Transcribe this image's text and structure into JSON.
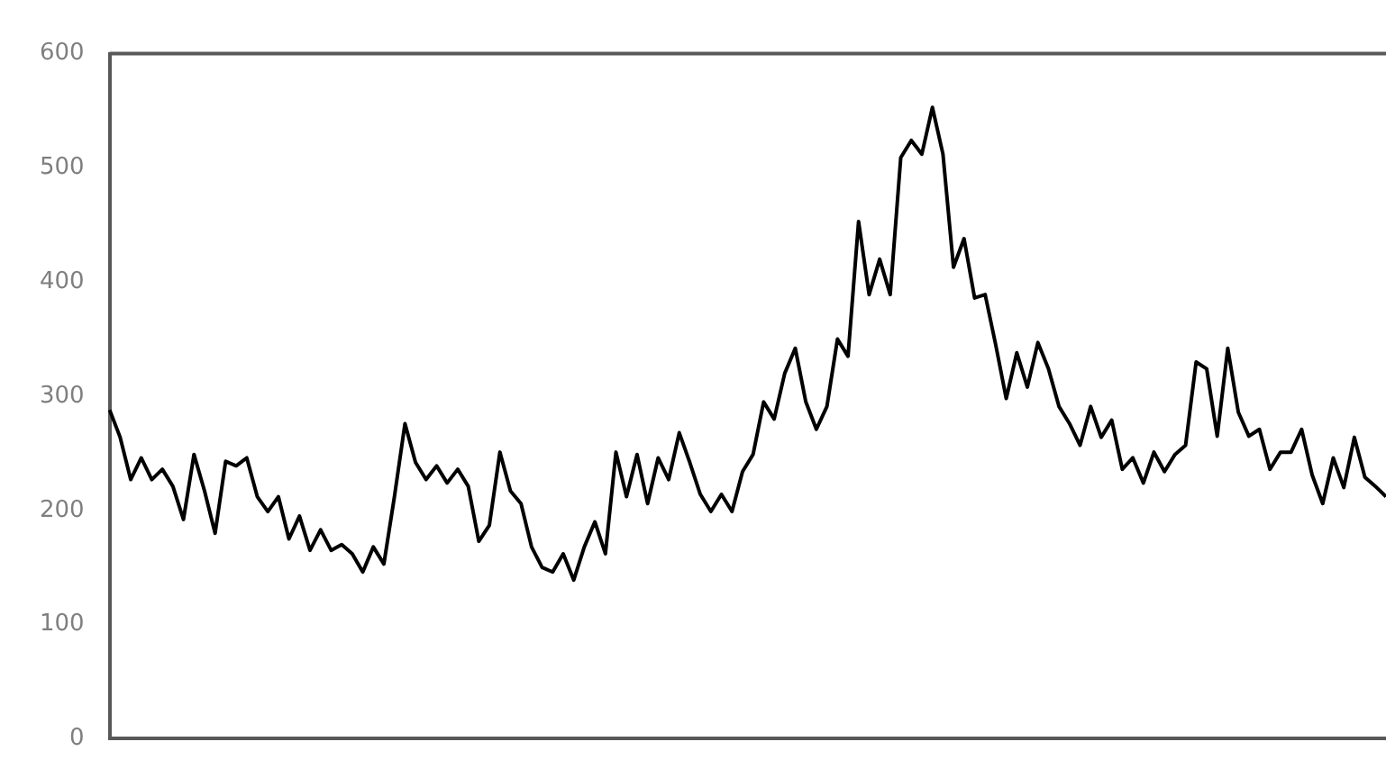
{
  "chart_data": {
    "type": "line",
    "categories": [
      null,
      null,
      null,
      null,
      null,
      null,
      null,
      null,
      null,
      null,
      null,
      null,
      null,
      null,
      null,
      null,
      null,
      null,
      null,
      null,
      null,
      null,
      null,
      null,
      null,
      null,
      null,
      null,
      null,
      null,
      null,
      null,
      null,
      null,
      null,
      null,
      null,
      null,
      null,
      null,
      null,
      null,
      null,
      null,
      null,
      null,
      null,
      null,
      null,
      null,
      null,
      null,
      null,
      null,
      null,
      null,
      null,
      null,
      null,
      null,
      null,
      null,
      null,
      null,
      null,
      null,
      null,
      null,
      null,
      null,
      null,
      null,
      null,
      null,
      null,
      null,
      null,
      null,
      null,
      null,
      null,
      null,
      null,
      null,
      null,
      null,
      null,
      null,
      null,
      null,
      null,
      null,
      null,
      null,
      null,
      null,
      null,
      null,
      null,
      null,
      null,
      null,
      null,
      null,
      null,
      null,
      null,
      null,
      null,
      null,
      null,
      null,
      null,
      null,
      null,
      null,
      null,
      null,
      null,
      null,
      null,
      null
    ],
    "series": [
      {
        "color": "#000000",
        "values": [
          288,
          264,
          227,
          246,
          227,
          236,
          221,
          192,
          249,
          217,
          180,
          243,
          239,
          246,
          212,
          199,
          212,
          175,
          195,
          165,
          183,
          165,
          170,
          162,
          146,
          168,
          153,
          212,
          276,
          242,
          227,
          239,
          224,
          236,
          221,
          173,
          187,
          251,
          217,
          206,
          168,
          150,
          146,
          162,
          139,
          168,
          190,
          162,
          251,
          212,
          249,
          206,
          246,
          227,
          268,
          242,
          214,
          199,
          214,
          199,
          234,
          249,
          295,
          280,
          320,
          342,
          295,
          271,
          291,
          350,
          335,
          453,
          389,
          420,
          389,
          509,
          524,
          512,
          553,
          512,
          413,
          438,
          386,
          389,
          345,
          298,
          338,
          308,
          347,
          324,
          291,
          276,
          257,
          291,
          264,
          279,
          236,
          246,
          224,
          251,
          234,
          249,
          257,
          330,
          324,
          265,
          342,
          286,
          265,
          271,
          236,
          251,
          251,
          271,
          231,
          206,
          246,
          220,
          264,
          229,
          221,
          212
        ]
      }
    ],
    "ylim": [
      0,
      600
    ],
    "yticks": [
      0,
      100,
      200,
      300,
      400,
      500,
      600
    ],
    "grid": false,
    "legend": false,
    "marker": "none",
    "line_style": "solid"
  }
}
